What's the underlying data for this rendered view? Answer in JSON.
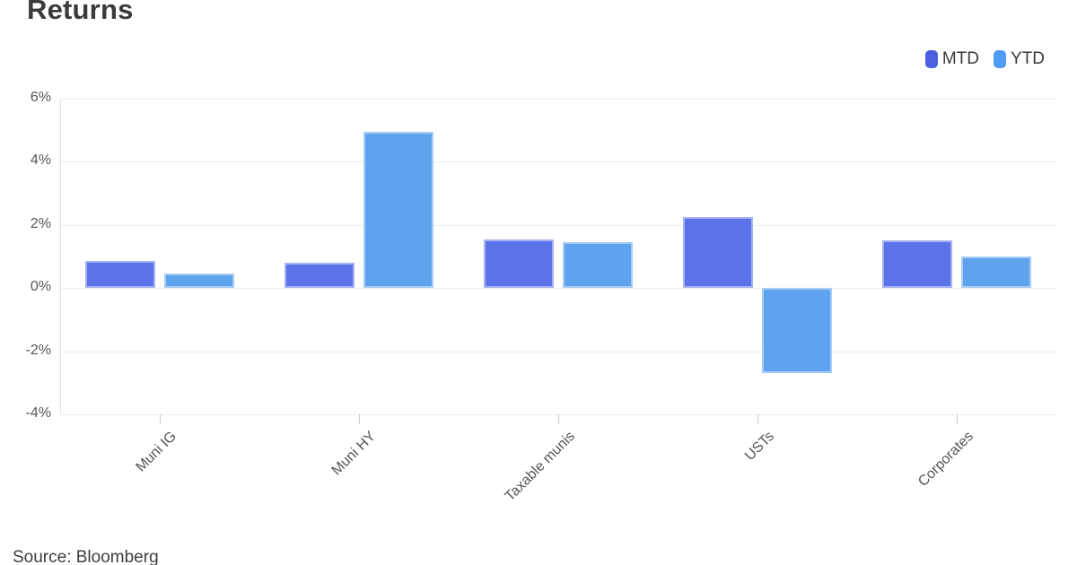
{
  "title": "Returns",
  "source": "Source: Bloomberg",
  "legend": {
    "items": [
      {
        "label": "MTD",
        "color": "#4b5fe1"
      },
      {
        "label": "YTD",
        "color": "#4f9df3"
      }
    ]
  },
  "chart_data": {
    "type": "bar",
    "title": "Returns",
    "categories": [
      "Muni IG",
      "Muni HY",
      "Taxable munis",
      "USTs",
      "Corporates"
    ],
    "series": [
      {
        "name": "MTD",
        "color": "#5b72e8",
        "values": [
          0.85,
          0.8,
          1.55,
          2.25,
          1.5
        ]
      },
      {
        "name": "YTD",
        "color": "#5fa2ee",
        "values": [
          0.45,
          4.95,
          1.45,
          -2.7,
          1.0
        ]
      }
    ],
    "xlabel": "",
    "ylabel": "",
    "unit": "%",
    "ylim": [
      -4,
      6
    ],
    "y_ticks": [
      6,
      4,
      2,
      0,
      -2,
      -4
    ],
    "y_tick_labels": [
      "6%",
      "4%",
      "2%",
      "0%",
      "-2%",
      "-4%"
    ],
    "grid": true,
    "legend_position": "top-right",
    "annotations": [
      "Source: Bloomberg"
    ]
  }
}
